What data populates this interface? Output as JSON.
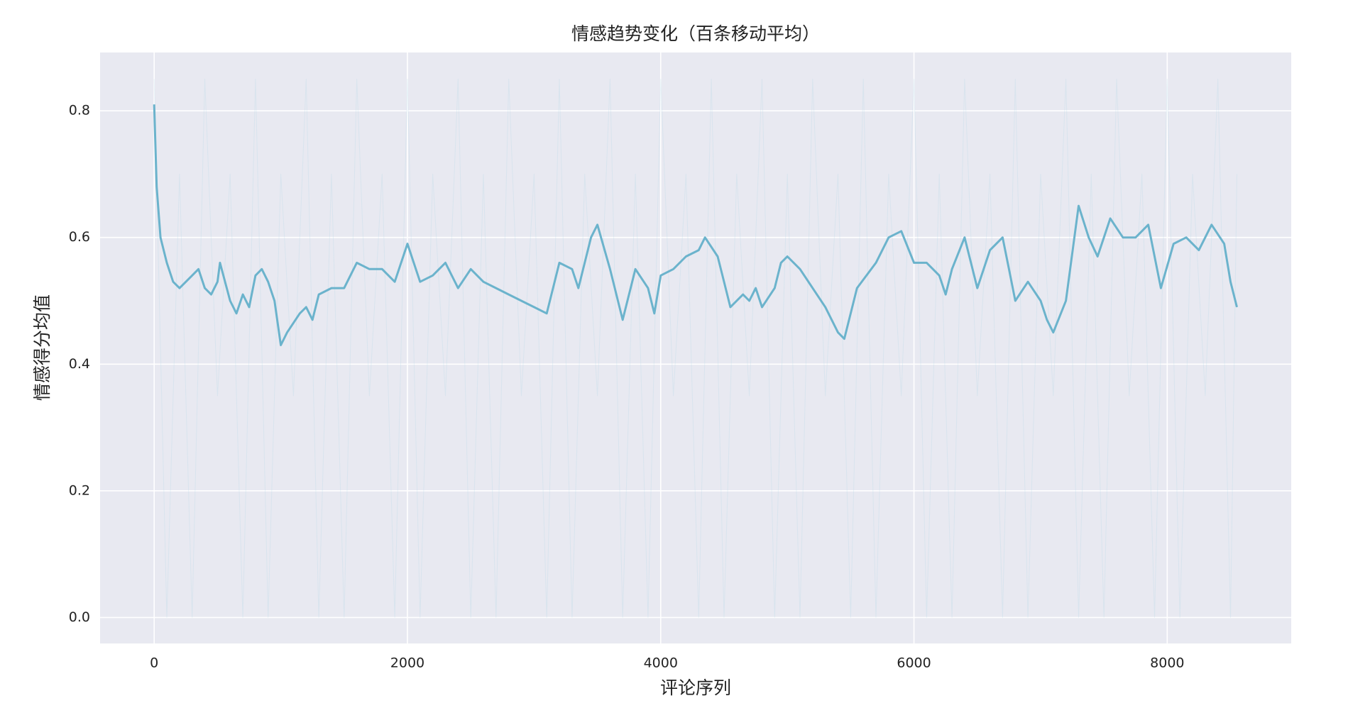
{
  "chart_data": {
    "type": "line",
    "title": "情感趋势变化（百条移动平均）",
    "x_label": "评论序列",
    "y_label": "情感得分均值",
    "xlim": [
      -427,
      8979
    ],
    "ylim": [
      -0.041,
      0.892
    ],
    "xticks": [
      0,
      2000,
      4000,
      6000,
      8000
    ],
    "yticks": [
      {
        "value": 0,
        "label": "0.0"
      },
      0.2,
      0.4,
      0.6,
      0.8
    ],
    "grid": true,
    "background": "#e8e9f1",
    "series": [
      {
        "color": "#add8e6",
        "opacity": 0.25,
        "x": [
          0,
          100,
          200,
          300,
          400,
          500,
          600,
          700,
          800,
          900,
          1000,
          1100,
          1200,
          1300,
          1400,
          1500,
          1600,
          1700,
          1800,
          1900,
          2000,
          2100,
          2200,
          2300,
          2400,
          2500,
          2600,
          2700,
          2800,
          2900,
          3000,
          3100,
          3200,
          3300,
          3400,
          3500,
          3600,
          3700,
          3800,
          3900,
          4000,
          4100,
          4200,
          4300,
          4400,
          4500,
          4600,
          4700,
          4800,
          4900,
          5000,
          5100,
          5200,
          5300,
          5400,
          5500,
          5600,
          5700,
          5800,
          5900,
          6000,
          6100,
          6200,
          6300,
          6400,
          6500,
          6600,
          6700,
          6800,
          6900,
          7000,
          7100,
          7200,
          7300,
          7400,
          7500,
          7600,
          7700,
          7800,
          7900,
          8000,
          8100,
          8200,
          8300,
          8400,
          8500,
          8550
        ],
        "values": [
          0.85,
          0,
          0.7,
          0,
          0.85,
          0.35,
          0.7,
          0,
          0.85,
          0,
          0.7,
          0.35,
          0.85,
          0,
          0.7,
          0,
          0.85,
          0.35,
          0.7,
          0,
          0.85,
          0,
          0.7,
          0.35,
          0.85,
          0,
          0.7,
          0,
          0.85,
          0.35,
          0.7,
          0,
          0.85,
          0,
          0.7,
          0.35,
          0.85,
          0,
          0.7,
          0,
          0.85,
          0.35,
          0.7,
          0,
          0.85,
          0,
          0.7,
          0.35,
          0.85,
          0,
          0.7,
          0,
          0.85,
          0.35,
          0.7,
          0,
          0.85,
          0,
          0.7,
          0.35,
          0.85,
          0,
          0.7,
          0,
          0.85,
          0.35,
          0.7,
          0,
          0.85,
          0,
          0.7,
          0.35,
          0.85,
          0,
          0.7,
          0,
          0.85,
          0.35,
          0.7,
          0,
          0.85,
          0,
          0.7,
          0.35,
          0.85,
          0,
          0.7
        ]
      },
      {
        "color": "#6bb3cc",
        "x": [
          0,
          20,
          50,
          100,
          150,
          200,
          300,
          350,
          400,
          450,
          500,
          520,
          600,
          650,
          700,
          750,
          800,
          850,
          900,
          950,
          1000,
          1050,
          1150,
          1200,
          1250,
          1300,
          1400,
          1500,
          1600,
          1700,
          1800,
          1900,
          2000,
          2100,
          2200,
          2300,
          2400,
          2500,
          2600,
          2700,
          2800,
          2900,
          3000,
          3100,
          3200,
          3300,
          3350,
          3450,
          3500,
          3600,
          3700,
          3800,
          3900,
          3950,
          4000,
          4100,
          4200,
          4300,
          4350,
          4450,
          4500,
          4550,
          4650,
          4700,
          4750,
          4800,
          4900,
          4950,
          5000,
          5100,
          5200,
          5300,
          5400,
          5450,
          5550,
          5700,
          5800,
          5900,
          6000,
          6100,
          6200,
          6250,
          6300,
          6400,
          6500,
          6600,
          6700,
          6750,
          6800,
          6900,
          7000,
          7050,
          7100,
          7200,
          7300,
          7380,
          7450,
          7550,
          7650,
          7750,
          7850,
          7950,
          8050,
          8150,
          8250,
          8350,
          8450,
          8500,
          8550
        ],
        "values": [
          0.81,
          0.68,
          0.6,
          0.56,
          0.53,
          0.52,
          0.54,
          0.55,
          0.52,
          0.51,
          0.53,
          0.56,
          0.5,
          0.48,
          0.51,
          0.49,
          0.54,
          0.55,
          0.53,
          0.5,
          0.43,
          0.45,
          0.48,
          0.49,
          0.47,
          0.51,
          0.52,
          0.52,
          0.56,
          0.55,
          0.55,
          0.53,
          0.59,
          0.53,
          0.54,
          0.56,
          0.52,
          0.55,
          0.53,
          0.52,
          0.51,
          0.5,
          0.49,
          0.48,
          0.56,
          0.55,
          0.52,
          0.6,
          0.62,
          0.55,
          0.47,
          0.55,
          0.52,
          0.48,
          0.54,
          0.55,
          0.57,
          0.58,
          0.6,
          0.57,
          0.53,
          0.49,
          0.51,
          0.5,
          0.52,
          0.49,
          0.52,
          0.56,
          0.57,
          0.55,
          0.52,
          0.49,
          0.45,
          0.44,
          0.52,
          0.56,
          0.6,
          0.61,
          0.56,
          0.56,
          0.54,
          0.51,
          0.55,
          0.6,
          0.52,
          0.58,
          0.6,
          0.55,
          0.5,
          0.53,
          0.5,
          0.47,
          0.45,
          0.5,
          0.65,
          0.6,
          0.57,
          0.63,
          0.6,
          0.6,
          0.62,
          0.52,
          0.59,
          0.6,
          0.58,
          0.62,
          0.59,
          0.53,
          0.49
        ]
      }
    ]
  }
}
